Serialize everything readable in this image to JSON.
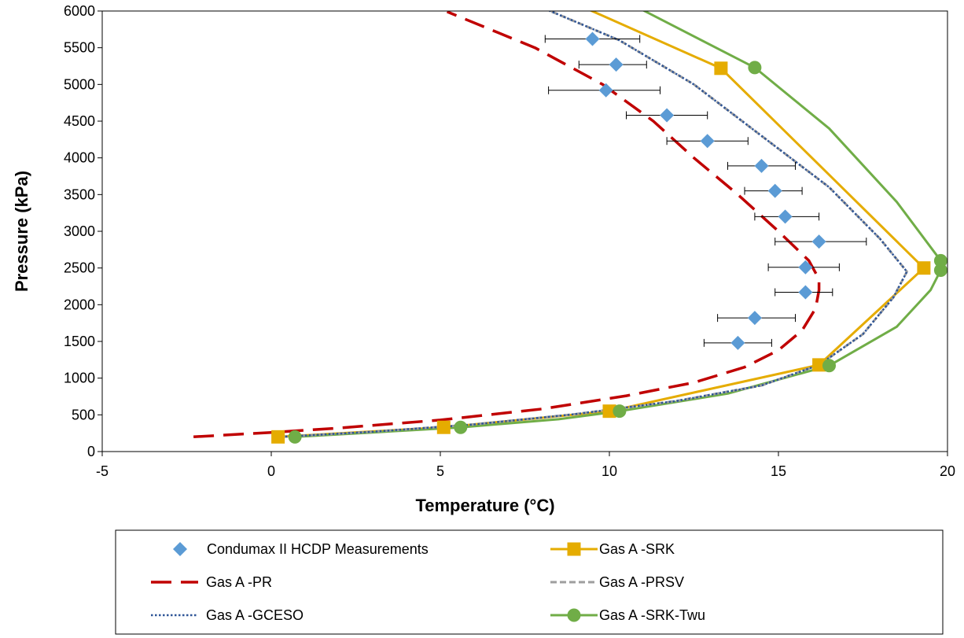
{
  "chart_data": {
    "type": "scatter",
    "xlabel": "Temperature (°C)",
    "ylabel": "Pressure (kPa)",
    "xlim": [
      -5,
      20
    ],
    "ylim": [
      0,
      6000
    ],
    "x_ticks": [
      -5,
      0,
      5,
      10,
      15,
      20
    ],
    "y_ticks": [
      0,
      500,
      1000,
      1500,
      2000,
      2500,
      3000,
      3500,
      4000,
      4500,
      5000,
      5500,
      6000
    ],
    "grid": false,
    "legend_placement": "bottom",
    "series": [
      {
        "name": "Condumax II HCDP Measurements",
        "style": "marker",
        "marker": "diamond",
        "color": "#5b9bd5",
        "points": [
          {
            "x": 9.5,
            "y": 5620,
            "xerr": [
              8.1,
              10.9
            ]
          },
          {
            "x": 10.2,
            "y": 5270,
            "xerr": [
              9.1,
              11.1
            ]
          },
          {
            "x": 9.9,
            "y": 4920,
            "xerr": [
              8.2,
              11.5
            ]
          },
          {
            "x": 11.7,
            "y": 4580,
            "xerr": [
              10.5,
              12.9
            ]
          },
          {
            "x": 12.9,
            "y": 4230,
            "xerr": [
              11.7,
              14.1
            ]
          },
          {
            "x": 14.5,
            "y": 3890,
            "xerr": [
              13.5,
              15.5
            ]
          },
          {
            "x": 14.9,
            "y": 3550,
            "xerr": [
              14.0,
              15.7
            ]
          },
          {
            "x": 15.2,
            "y": 3200,
            "xerr": [
              14.3,
              16.2
            ]
          },
          {
            "x": 16.2,
            "y": 2860,
            "xerr": [
              14.9,
              17.6
            ]
          },
          {
            "x": 15.8,
            "y": 2510,
            "xerr": [
              14.7,
              16.8
            ]
          },
          {
            "x": 15.8,
            "y": 2170,
            "xerr": [
              14.9,
              16.6
            ]
          },
          {
            "x": 14.3,
            "y": 1820,
            "xerr": [
              13.2,
              15.5
            ]
          },
          {
            "x": 13.8,
            "y": 1480,
            "xerr": [
              12.8,
              14.8
            ]
          }
        ]
      },
      {
        "name": "Gas A -SRK",
        "style": "line-marker",
        "marker": "square",
        "color": "#e5ac00",
        "points": [
          {
            "x": 0.2,
            "y": 200
          },
          {
            "x": 5.1,
            "y": 330
          },
          {
            "x": 10.0,
            "y": 550
          },
          {
            "x": 16.2,
            "y": 1180
          },
          {
            "x": 19.3,
            "y": 2500
          },
          {
            "x": 13.3,
            "y": 5220
          },
          {
            "x": 9.0,
            "y": 6100
          }
        ]
      },
      {
        "name": "Gas A -PR",
        "style": "dashed",
        "color": "#c00000",
        "points": [
          {
            "x": -2.3,
            "y": 200
          },
          {
            "x": 0,
            "y": 260
          },
          {
            "x": 2.0,
            "y": 320
          },
          {
            "x": 5.0,
            "y": 430
          },
          {
            "x": 8.0,
            "y": 580
          },
          {
            "x": 10.5,
            "y": 760
          },
          {
            "x": 12.5,
            "y": 940
          },
          {
            "x": 14.0,
            "y": 1150
          },
          {
            "x": 15.0,
            "y": 1380
          },
          {
            "x": 15.7,
            "y": 1650
          },
          {
            "x": 16.1,
            "y": 1950
          },
          {
            "x": 16.2,
            "y": 2200
          },
          {
            "x": 16.2,
            "y": 2350
          },
          {
            "x": 15.9,
            "y": 2600
          },
          {
            "x": 15.0,
            "y": 3000
          },
          {
            "x": 13.8,
            "y": 3500
          },
          {
            "x": 12.5,
            "y": 4000
          },
          {
            "x": 11.3,
            "y": 4500
          },
          {
            "x": 9.8,
            "y": 5000
          },
          {
            "x": 7.8,
            "y": 5500
          },
          {
            "x": 5.2,
            "y": 5990
          }
        ]
      },
      {
        "name": "Gas A -PRSV",
        "style": "dashed-short",
        "color": "#9e9e9e",
        "points": [
          {
            "x": 0.3,
            "y": 200
          },
          {
            "x": 3.0,
            "y": 270
          },
          {
            "x": 6.0,
            "y": 370
          },
          {
            "x": 9.0,
            "y": 510
          },
          {
            "x": 12.0,
            "y": 690
          },
          {
            "x": 14.5,
            "y": 900
          },
          {
            "x": 16.2,
            "y": 1180
          },
          {
            "x": 17.5,
            "y": 1600
          },
          {
            "x": 18.4,
            "y": 2100
          },
          {
            "x": 18.8,
            "y": 2450
          },
          {
            "x": 18.0,
            "y": 2900
          },
          {
            "x": 16.5,
            "y": 3600
          },
          {
            "x": 14.5,
            "y": 4300
          },
          {
            "x": 12.5,
            "y": 5000
          },
          {
            "x": 10.3,
            "y": 5600
          },
          {
            "x": 8.2,
            "y": 6010
          }
        ]
      },
      {
        "name": "Gas A -GCESO",
        "style": "dotted",
        "color": "#2e5597",
        "points": [
          {
            "x": 0.3,
            "y": 200
          },
          {
            "x": 3.0,
            "y": 270
          },
          {
            "x": 6.0,
            "y": 370
          },
          {
            "x": 9.0,
            "y": 510
          },
          {
            "x": 12.0,
            "y": 690
          },
          {
            "x": 14.5,
            "y": 900
          },
          {
            "x": 16.2,
            "y": 1180
          },
          {
            "x": 17.5,
            "y": 1600
          },
          {
            "x": 18.4,
            "y": 2100
          },
          {
            "x": 18.8,
            "y": 2450
          },
          {
            "x": 18.0,
            "y": 2900
          },
          {
            "x": 16.5,
            "y": 3600
          },
          {
            "x": 14.5,
            "y": 4300
          },
          {
            "x": 12.5,
            "y": 5000
          },
          {
            "x": 10.3,
            "y": 5600
          },
          {
            "x": 8.2,
            "y": 6010
          }
        ]
      },
      {
        "name": "Gas A -SRK-Twu",
        "style": "line-marker",
        "marker": "circle",
        "color": "#70ad47",
        "points": [
          {
            "x": 0.7,
            "y": 200
          },
          {
            "x": 3.0,
            "y": 260
          },
          {
            "x": 5.6,
            "y": 330
          },
          {
            "x": 8.5,
            "y": 440
          },
          {
            "x": 10.3,
            "y": 550
          },
          {
            "x": 13.5,
            "y": 790
          },
          {
            "x": 16.5,
            "y": 1170
          },
          {
            "x": 18.5,
            "y": 1700
          },
          {
            "x": 19.5,
            "y": 2200
          },
          {
            "x": 19.8,
            "y": 2470
          },
          {
            "x": 19.8,
            "y": 2600
          },
          {
            "x": 18.5,
            "y": 3400
          },
          {
            "x": 16.5,
            "y": 4400
          },
          {
            "x": 14.3,
            "y": 5230
          },
          {
            "x": 11.0,
            "y": 6010
          }
        ],
        "marked": [
          {
            "x": 0.7,
            "y": 200
          },
          {
            "x": 5.6,
            "y": 330
          },
          {
            "x": 10.3,
            "y": 550
          },
          {
            "x": 16.5,
            "y": 1170
          },
          {
            "x": 19.8,
            "y": 2470
          },
          {
            "x": 19.8,
            "y": 2600
          },
          {
            "x": 14.3,
            "y": 5230
          }
        ]
      }
    ]
  }
}
